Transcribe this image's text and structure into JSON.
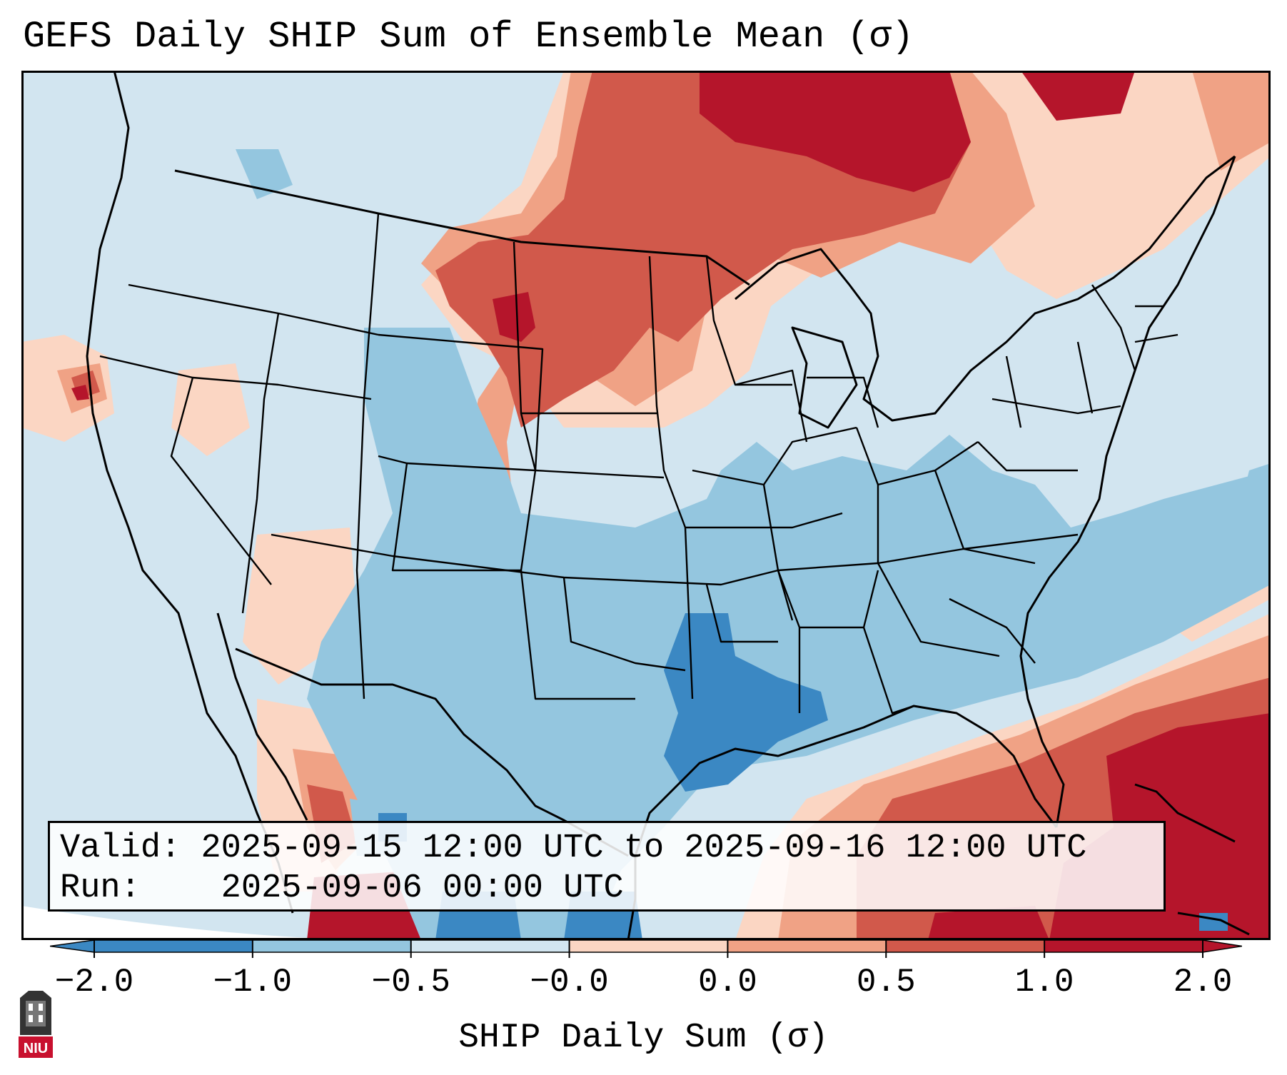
{
  "title": "GEFS Daily SHIP Sum of Ensemble Mean (σ)",
  "info": {
    "valid_label": "Valid:",
    "valid_value": "2025-09-15 12:00 UTC to 2025-09-16 12:00 UTC",
    "run_label": "Run:",
    "run_value": "2025-09-06 00:00 UTC"
  },
  "colorbar": {
    "label": "SHIP Daily Sum (σ)",
    "ticks": [
      "−2.0",
      "−1.0",
      "−0.5",
      "−0.0",
      "0.0",
      "0.5",
      "1.0",
      "2.0"
    ],
    "colors": [
      "#3b88c3",
      "#94c6df",
      "#d2e5f0",
      "#fbd6c3",
      "#f0a285",
      "#d1594b",
      "#b5152b"
    ],
    "extend": "both"
  },
  "map": {
    "region": "Contiguous United States",
    "background_color": "#d2e5f0",
    "features": [
      {
        "name": "northern-plains-maximum",
        "level": 2.0
      },
      {
        "name": "canadian-prairies-maximum",
        "level": 2.0
      },
      {
        "name": "gulf-of-mexico-caribbean-maximum",
        "level": 2.0
      },
      {
        "name": "southern-plains-minimum",
        "level": -1.0
      }
    ]
  },
  "logo": {
    "text": "NIU",
    "color": "#c8102e"
  }
}
